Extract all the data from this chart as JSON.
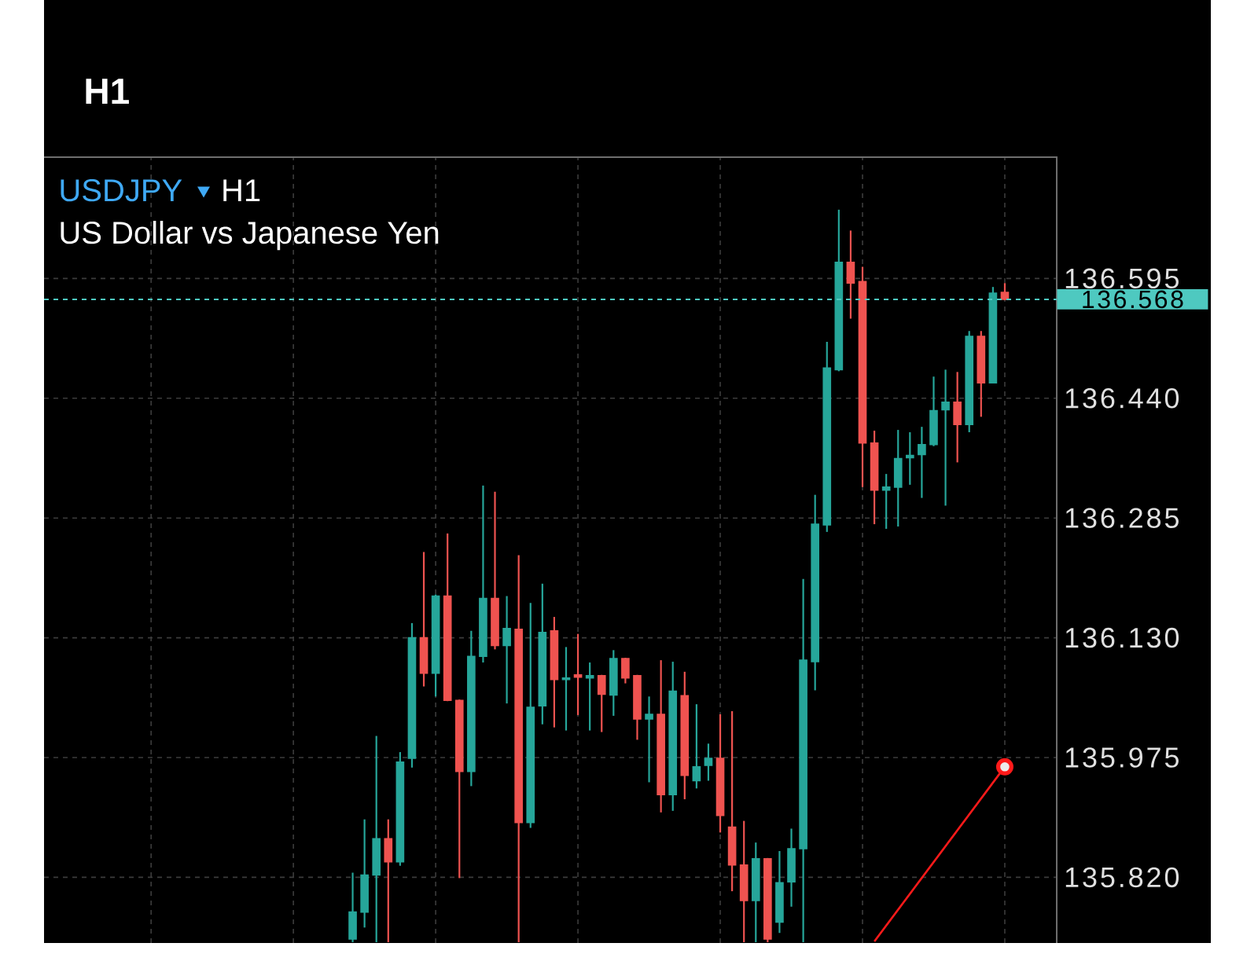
{
  "chart_data": {
    "type": "candlestick",
    "title": "USDJPY",
    "subtitle": "US Dollar vs Japanese Yen",
    "annotations": [
      "H1",
      "H1"
    ],
    "categories": [
      null,
      null,
      null,
      null,
      null,
      null,
      null,
      null,
      null,
      null,
      null,
      null,
      null,
      null,
      null,
      null,
      null,
      null,
      null,
      null,
      null,
      null,
      null,
      null,
      null,
      null,
      null,
      null,
      null,
      null,
      null,
      null,
      null,
      null,
      null,
      null,
      null,
      null,
      null,
      null,
      null,
      null,
      null,
      null,
      null,
      null,
      null,
      null,
      null,
      null,
      null,
      null,
      null,
      null,
      null,
      null
    ],
    "ohlc": [
      [
        135.74,
        135.826,
        135.736,
        135.775
      ],
      [
        135.775,
        135.895,
        135.755,
        135.823
      ],
      [
        135.823,
        136.003,
        135.736,
        135.87
      ],
      [
        135.87,
        135.895,
        135.736,
        135.84
      ],
      [
        135.84,
        135.982,
        135.835,
        135.969
      ],
      [
        135.974,
        136.149,
        135.962,
        136.13
      ],
      [
        136.13,
        136.241,
        136.067,
        136.084
      ],
      [
        136.084,
        136.186,
        136.054,
        136.184
      ],
      [
        136.184,
        136.265,
        136.048,
        136.049
      ],
      [
        136.049,
        136.05,
        135.819,
        135.957
      ],
      [
        135.957,
        136.139,
        135.938,
        136.106
      ],
      [
        136.106,
        136.327,
        136.098,
        136.181
      ],
      [
        136.181,
        136.319,
        136.115,
        136.12
      ],
      [
        136.12,
        136.184,
        136.045,
        136.142
      ],
      [
        136.141,
        136.237,
        135.736,
        135.891
      ],
      [
        135.891,
        136.175,
        135.884,
        136.04
      ],
      [
        136.042,
        136.2,
        136.018,
        136.137
      ],
      [
        136.139,
        136.157,
        136.014,
        136.076
      ],
      [
        136.076,
        136.118,
        136.01,
        136.078
      ],
      [
        136.082,
        136.135,
        136.03,
        136.079
      ],
      [
        136.078,
        136.098,
        136.01,
        136.081
      ],
      [
        136.081,
        136.082,
        136.008,
        136.057
      ],
      [
        136.056,
        136.114,
        136.029,
        136.103
      ],
      [
        136.103,
        136.104,
        136.071,
        136.078
      ],
      [
        136.081,
        136.082,
        135.998,
        136.025
      ],
      [
        136.025,
        136.054,
        135.943,
        136.031
      ],
      [
        136.031,
        136.101,
        135.904,
        135.927
      ],
      [
        135.927,
        136.099,
        135.906,
        136.061
      ],
      [
        136.055,
        136.086,
        135.921,
        135.952
      ],
      [
        135.945,
        136.044,
        135.935,
        135.963
      ],
      [
        135.965,
        135.993,
        135.945,
        135.974
      ],
      [
        135.974,
        136.031,
        135.878,
        135.9
      ],
      [
        135.885,
        136.035,
        135.802,
        135.836
      ],
      [
        135.836,
        135.893,
        135.736,
        135.79
      ],
      [
        135.79,
        135.865,
        135.736,
        135.844
      ],
      [
        135.844,
        135.845,
        135.736,
        135.74
      ],
      [
        135.762,
        135.854,
        135.748,
        135.813
      ],
      [
        135.814,
        135.883,
        135.782,
        135.857
      ],
      [
        135.857,
        136.206,
        135.736,
        136.101
      ],
      [
        136.099,
        136.315,
        136.062,
        136.277
      ],
      [
        136.276,
        136.513,
        136.267,
        136.479
      ],
      [
        136.477,
        136.684,
        136.475,
        136.616
      ],
      [
        136.616,
        136.657,
        136.543,
        136.589
      ],
      [
        136.591,
        136.61,
        136.325,
        136.382
      ],
      [
        136.382,
        136.398,
        136.277,
        136.321
      ],
      [
        136.321,
        136.342,
        136.271,
        136.325
      ],
      [
        136.325,
        136.399,
        136.274,
        136.362
      ],
      [
        136.363,
        136.396,
        136.328,
        136.366
      ],
      [
        136.367,
        136.403,
        136.311,
        136.38
      ],
      [
        136.38,
        136.468,
        136.378,
        136.424
      ],
      [
        136.425,
        136.477,
        136.301,
        136.435
      ],
      [
        136.435,
        136.474,
        136.357,
        136.406
      ],
      [
        136.406,
        136.527,
        136.396,
        136.52
      ],
      [
        136.52,
        136.527,
        136.416,
        136.46
      ],
      [
        136.46,
        136.584,
        136.46,
        136.576
      ],
      [
        136.577,
        136.589,
        136.567,
        136.568
      ]
    ],
    "series": [
      {
        "type": "line",
        "color": "#ff1a1a",
        "values": [
          null,
          null,
          null,
          null,
          null,
          null,
          null,
          null,
          null,
          null,
          null,
          null,
          null,
          null,
          null,
          null,
          null,
          null,
          null,
          null,
          null,
          null,
          null,
          null,
          null,
          null,
          null,
          null,
          null,
          null,
          null,
          null,
          null,
          null,
          null,
          null,
          null,
          null,
          null,
          null,
          null,
          null,
          null,
          null,
          135.737,
          null,
          null,
          null,
          null,
          null,
          null,
          null,
          null,
          null,
          null,
          135.963
        ]
      }
    ],
    "ylim": [
      135.735,
      136.752
    ],
    "yticks": [
      135.975,
      {
        "value": 135.82,
        "label": "135.820"
      },
      {
        "value": 136.13,
        "label": "136.130"
      },
      136.285,
      {
        "value": 136.44,
        "label": "136.440"
      },
      136.595
    ],
    "grid": true,
    "tick_labels": "y",
    "ref_lines": [
      {
        "axis": "y",
        "value": 136.568,
        "label": "136.568",
        "color": "#4ec9c0",
        "line_style": "dashed"
      }
    ]
  }
}
